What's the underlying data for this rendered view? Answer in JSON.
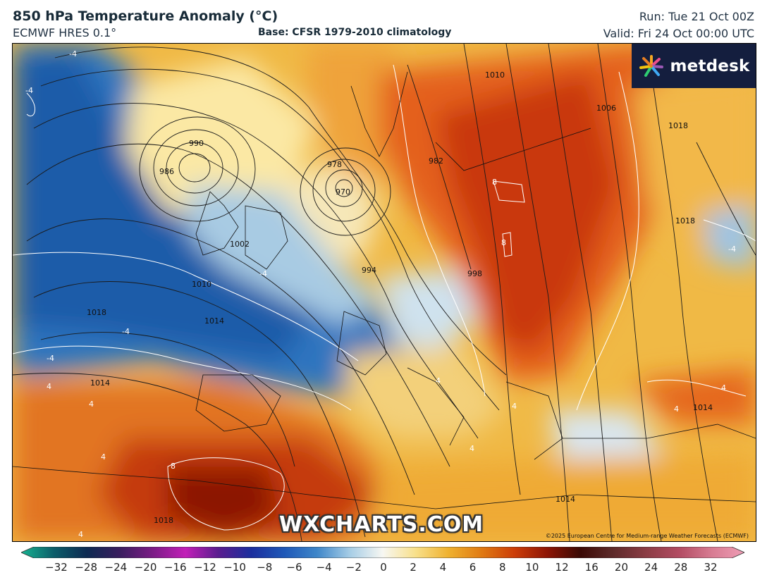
{
  "header": {
    "title": "850 hPa Temperature Anomaly (°C)",
    "model": "ECMWF HRES 0.1°",
    "base": "Base: CFSR 1979-2010 climatology",
    "run": "Run: Tue 21 Oct 00Z",
    "valid": "Valid: Fri 24 Oct 00:00 UTC"
  },
  "map": {
    "logo": "metdesk",
    "watermark": "WXCHARTS.COM",
    "copyright": "©2025 European Centre for Medium-range Weather Forecasts (ECMWF)",
    "isobar_labels": [
      "990",
      "986",
      "978",
      "970",
      "982",
      "994",
      "998",
      "1002",
      "1006",
      "1010",
      "1014",
      "1018",
      "1014",
      "1018",
      "1018",
      "1014",
      "1014",
      "1018",
      "1010"
    ],
    "anomaly_labels": [
      "-4",
      "-4",
      "-4",
      "-4",
      "-4",
      "-4",
      "8",
      "8",
      "8",
      "4",
      "4",
      "4",
      "4",
      "4",
      "4",
      "4",
      "4",
      "4"
    ]
  },
  "colorbar": {
    "ticks": [
      "−32",
      "−28",
      "−24",
      "−20",
      "−16",
      "−12",
      "−10",
      "−8",
      "−6",
      "−4",
      "−2",
      "0",
      "2",
      "4",
      "6",
      "8",
      "10",
      "12",
      "16",
      "20",
      "24",
      "28",
      "32"
    ],
    "colors": [
      "#17b391",
      "#0c5d6a",
      "#0d2a52",
      "#3a1e5f",
      "#7b1c86",
      "#c21fb8",
      "#5a1d8f",
      "#1b2e9e",
      "#1e58b8",
      "#3e86c9",
      "#a6cde6",
      "#f7f7f2",
      "#f8e08a",
      "#efb12f",
      "#e07a12",
      "#cc3d08",
      "#8e1505",
      "#3b0a05",
      "#5d2a2a",
      "#8b3c44",
      "#b24b62",
      "#d77b92",
      "#ef9db5"
    ]
  }
}
